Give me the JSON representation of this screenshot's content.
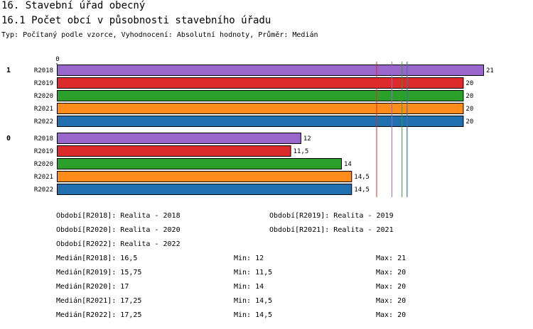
{
  "heading": {
    "section": "16. Stavební úřad obecný",
    "subsection": "16.1 Počet obcí v působnosti stavebního úřadu",
    "typ": "Typ: Počítaný podle vzorce, Vyhodnocení: Absolutní hodnoty, Průměr: Medián"
  },
  "chart_data": {
    "type": "bar",
    "orientation": "horizontal",
    "axis_zero_label": "0",
    "xlim": [
      0,
      21
    ],
    "groups": [
      {
        "label": "1",
        "bars": [
          {
            "period": "R2018",
            "value": 21,
            "value_label": "21",
            "color": "#9966cc"
          },
          {
            "period": "R2019",
            "value": 20,
            "value_label": "20",
            "color": "#dd2a2a"
          },
          {
            "period": "R2020",
            "value": 20,
            "value_label": "20",
            "color": "#2aa02a"
          },
          {
            "period": "R2021",
            "value": 20,
            "value_label": "20",
            "color": "#ff8c1a"
          },
          {
            "period": "R2022",
            "value": 20,
            "value_label": "20",
            "color": "#2070b0"
          }
        ]
      },
      {
        "label": "0",
        "bars": [
          {
            "period": "R2018",
            "value": 12,
            "value_label": "12",
            "color": "#9966cc"
          },
          {
            "period": "R2019",
            "value": 11.5,
            "value_label": "11,5",
            "color": "#dd2a2a"
          },
          {
            "period": "R2020",
            "value": 14,
            "value_label": "14",
            "color": "#2aa02a"
          },
          {
            "period": "R2021",
            "value": 14.5,
            "value_label": "14,5",
            "color": "#ff8c1a"
          },
          {
            "period": "R2022",
            "value": 14.5,
            "value_label": "14,5",
            "color": "#2070b0"
          }
        ]
      }
    ],
    "median_lines": [
      {
        "period": "R2018",
        "value": 16.5,
        "color": "#9966cc"
      },
      {
        "period": "R2019",
        "value": 15.75,
        "color": "#dd2a2a"
      },
      {
        "period": "R2020",
        "value": 17,
        "color": "#2aa02a"
      },
      {
        "period": "R2021",
        "value": 17.25,
        "color": "#ff8c1a"
      },
      {
        "period": "R2022",
        "value": 17.25,
        "color": "#2070b0"
      }
    ]
  },
  "legend": {
    "periods": [
      "Období[R2018]: Realita - 2018",
      "Období[R2019]: Realita - 2019",
      "Období[R2020]: Realita - 2020",
      "Období[R2021]: Realita - 2021",
      "Období[R2022]: Realita - 2022"
    ],
    "stats": [
      {
        "median": "Medián[R2018]: 16,5",
        "min": "Min: 12",
        "max": "Max: 21"
      },
      {
        "median": "Medián[R2019]: 15,75",
        "min": "Min: 11,5",
        "max": "Max: 20"
      },
      {
        "median": "Medián[R2020]: 17",
        "min": "Min: 14",
        "max": "Max: 20"
      },
      {
        "median": "Medián[R2021]: 17,25",
        "min": "Min: 14,5",
        "max": "Max: 20"
      },
      {
        "median": "Medián[R2022]: 17,25",
        "min": "Min: 14,5",
        "max": "Max: 20"
      }
    ]
  }
}
